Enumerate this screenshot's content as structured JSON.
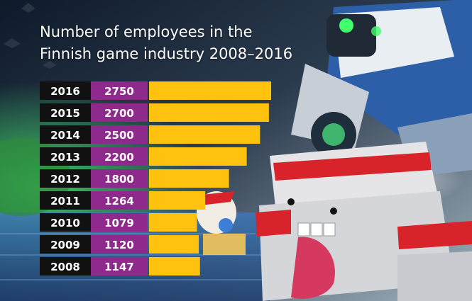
{
  "chart_data": {
    "type": "bar",
    "title": "Number of employees in the Finnish game industry 2008–2016",
    "title_lines": [
      "Number of employees in the",
      "Finnish game industry 2008–2016"
    ],
    "orientation": "horizontal",
    "categories": [
      "2016",
      "2015",
      "2014",
      "2013",
      "2012",
      "2011",
      "2010",
      "2009",
      "2008"
    ],
    "values": [
      2750,
      2700,
      2500,
      2200,
      1800,
      1264,
      1079,
      1120,
      1147
    ],
    "xlabel": "",
    "ylabel": "",
    "grid": false,
    "colors": {
      "bar": "#ffc20e",
      "year_box": "#111111",
      "value_box": "#8e2a8c",
      "text": "#ffffff"
    }
  }
}
